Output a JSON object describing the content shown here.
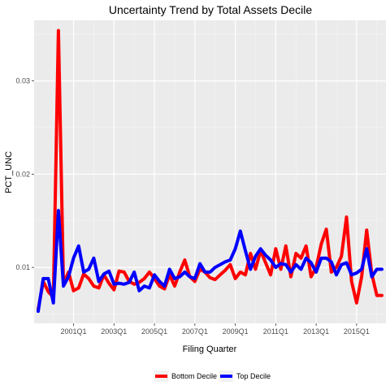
{
  "chart_data": {
    "type": "line",
    "title": "Uncertainty Trend by Total Assets Decile",
    "xlabel": "Filing Quarter",
    "ylabel": "PCT_UNC",
    "x_ticks": [
      "2001Q1",
      "2003Q1",
      "2005Q1",
      "2007Q1",
      "2009Q1",
      "2011Q1",
      "2013Q1",
      "2015Q1"
    ],
    "y_ticks": [
      0.01,
      0.02,
      0.03
    ],
    "ylim": [
      0.004,
      0.0365
    ],
    "grid": true,
    "legend_position": "bottom",
    "x": [
      "1999Q2",
      "1999Q3",
      "1999Q4",
      "2000Q1",
      "2000Q2",
      "2000Q3",
      "2000Q4",
      "2001Q1",
      "2001Q2",
      "2001Q3",
      "2001Q4",
      "2002Q1",
      "2002Q2",
      "2002Q3",
      "2002Q4",
      "2003Q1",
      "2003Q2",
      "2003Q3",
      "2003Q4",
      "2004Q1",
      "2004Q2",
      "2004Q3",
      "2004Q4",
      "2005Q1",
      "2005Q2",
      "2005Q3",
      "2005Q4",
      "2006Q1",
      "2006Q2",
      "2006Q3",
      "2006Q4",
      "2007Q1",
      "2007Q2",
      "2007Q3",
      "2007Q4",
      "2008Q1",
      "2008Q2",
      "2008Q3",
      "2008Q4",
      "2009Q1",
      "2009Q2",
      "2009Q3",
      "2009Q4",
      "2010Q1",
      "2010Q2",
      "2010Q3",
      "2010Q4",
      "2011Q1",
      "2011Q2",
      "2011Q3",
      "2011Q4",
      "2012Q1",
      "2012Q2",
      "2012Q3",
      "2012Q4",
      "2013Q1",
      "2013Q2",
      "2013Q3",
      "2013Q4",
      "2014Q1",
      "2014Q2",
      "2014Q3",
      "2014Q4",
      "2015Q1",
      "2015Q2",
      "2015Q3",
      "2015Q4",
      "2016Q1",
      "2016Q2"
    ],
    "series": [
      {
        "name": "Bottom Decile",
        "color": "#ff0000",
        "values": [
          0.0055,
          0.0085,
          0.0074,
          0.0068,
          0.0354,
          0.0082,
          0.0095,
          0.0075,
          0.0078,
          0.0093,
          0.0088,
          0.008,
          0.0078,
          0.0092,
          0.0083,
          0.0076,
          0.0096,
          0.0095,
          0.0085,
          0.0082,
          0.0084,
          0.0088,
          0.0095,
          0.0088,
          0.008,
          0.0077,
          0.0092,
          0.008,
          0.0095,
          0.0108,
          0.009,
          0.0085,
          0.0098,
          0.0095,
          0.0089,
          0.0087,
          0.0092,
          0.0097,
          0.0103,
          0.0088,
          0.0095,
          0.0092,
          0.0115,
          0.0098,
          0.0118,
          0.0105,
          0.0092,
          0.012,
          0.0098,
          0.0123,
          0.009,
          0.0115,
          0.011,
          0.0123,
          0.009,
          0.01,
          0.0125,
          0.0141,
          0.0095,
          0.01,
          0.0112,
          0.0154,
          0.0085,
          0.0062,
          0.009,
          0.014,
          0.0093,
          0.007,
          0.007
        ]
      },
      {
        "name": "Top Decile",
        "color": "#0000ff",
        "values": [
          0.0053,
          0.0088,
          0.0088,
          0.0062,
          0.0161,
          0.008,
          0.009,
          0.011,
          0.0123,
          0.0095,
          0.0098,
          0.011,
          0.0085,
          0.0093,
          0.0096,
          0.0082,
          0.0083,
          0.0082,
          0.0084,
          0.0095,
          0.0075,
          0.008,
          0.0078,
          0.0092,
          0.0085,
          0.008,
          0.0098,
          0.0088,
          0.009,
          0.0095,
          0.009,
          0.0088,
          0.0104,
          0.0095,
          0.0095,
          0.01,
          0.0103,
          0.0106,
          0.0108,
          0.012,
          0.0139,
          0.0118,
          0.0098,
          0.0112,
          0.012,
          0.0113,
          0.0108,
          0.01,
          0.0104,
          0.0103,
          0.0095,
          0.0103,
          0.0098,
          0.011,
          0.0105,
          0.0095,
          0.011,
          0.011,
          0.0106,
          0.0092,
          0.0103,
          0.0105,
          0.0092,
          0.0094,
          0.0098,
          0.012,
          0.009,
          0.0098,
          0.0098
        ]
      }
    ]
  }
}
